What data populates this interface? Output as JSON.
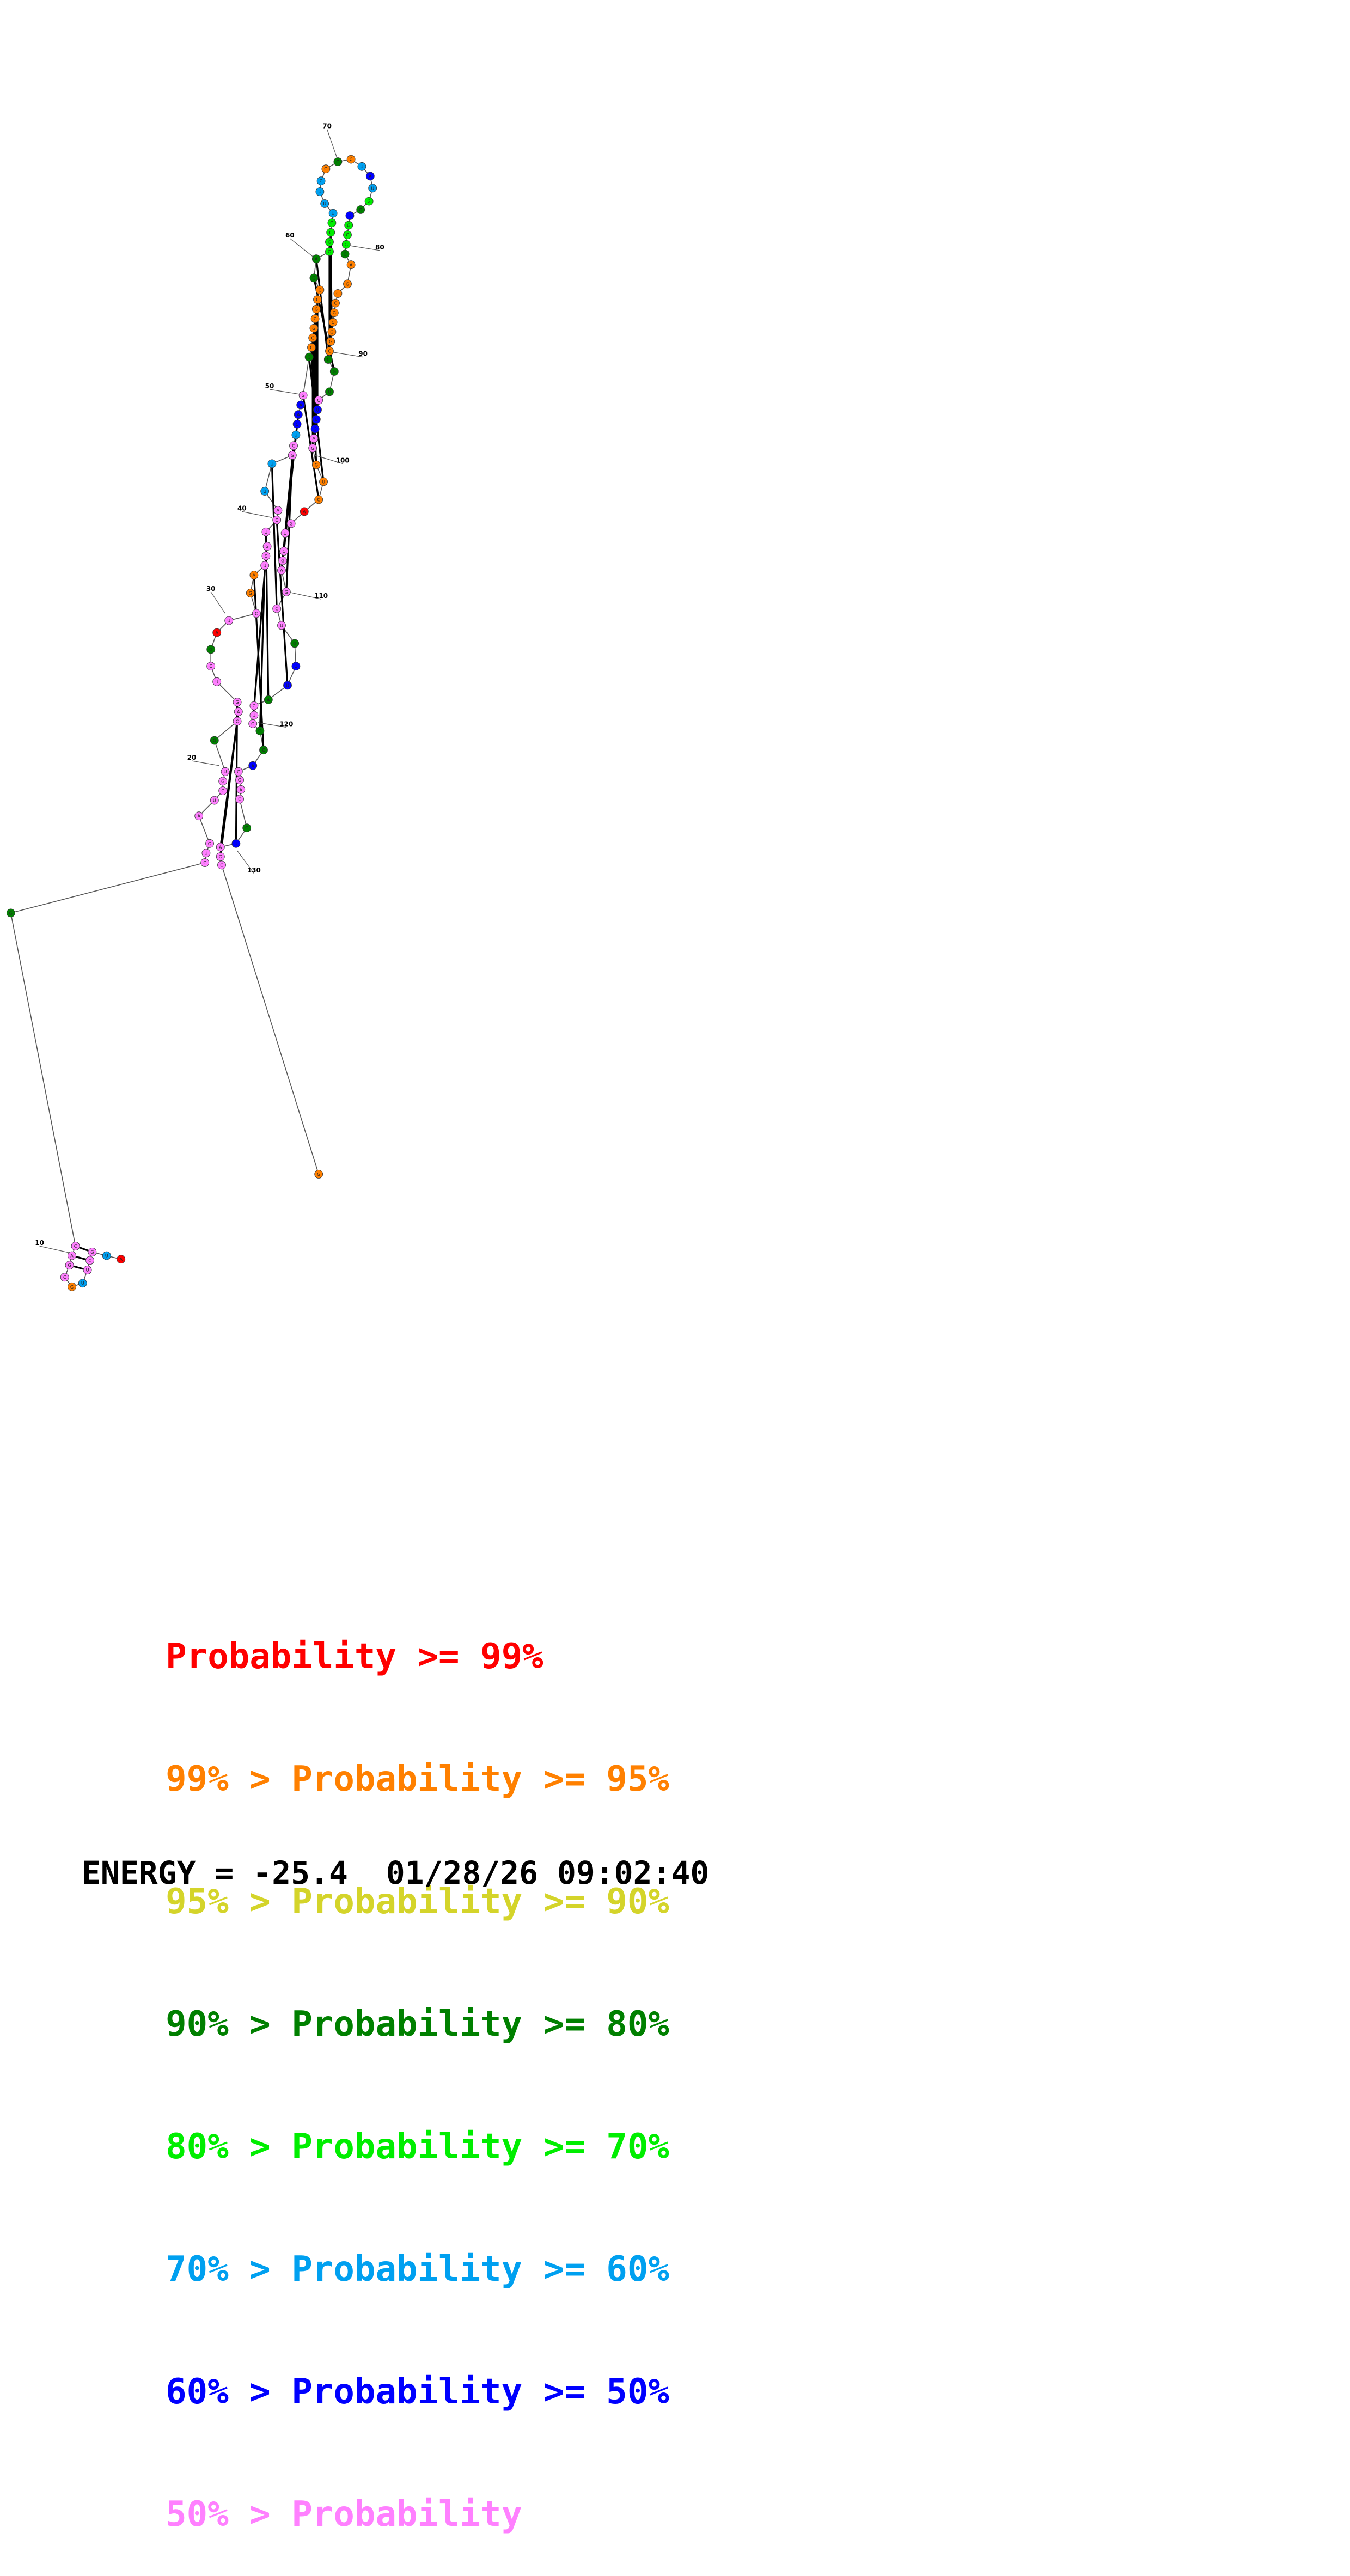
{
  "diagram": {
    "type": "rna-secondary-structure",
    "index_labels": [
      "10",
      "20",
      "30",
      "40",
      "50",
      "60",
      "70",
      "80",
      "90",
      "100",
      "110",
      "120",
      "130"
    ]
  },
  "legend": {
    "rows": [
      {
        "prefix": "",
        "label": "Probability",
        "suffix": " >= 99%",
        "color": "#ff0000"
      },
      {
        "prefix": "99% > ",
        "label": "Probability",
        "suffix": " >= 95%",
        "color": "#ff8000"
      },
      {
        "prefix": "95% > ",
        "label": "Probability",
        "suffix": " >= 90%",
        "color": "#d4d42a"
      },
      {
        "prefix": "90% > ",
        "label": "Probability",
        "suffix": " >= 80%",
        "color": "#008000"
      },
      {
        "prefix": "80% > ",
        "label": "Probability",
        "suffix": " >= 70%",
        "color": "#00ee00"
      },
      {
        "prefix": "70% > ",
        "label": "Probability",
        "suffix": " >= 60%",
        "color": "#00a0f0"
      },
      {
        "prefix": "60% > ",
        "label": "Probability",
        "suffix": " >= 50%",
        "color": "#0000ff"
      },
      {
        "prefix": "50% > ",
        "label": "Probability",
        "suffix": "",
        "color": "#ff80ff"
      }
    ]
  },
  "footer": {
    "energy_text": "ENERGY = -25.4",
    "timestamp": "01/28/26 09:02:40"
  },
  "colors": {
    "p99": "#ff0000",
    "p95": "#ff8000",
    "p90": "#d4d42a",
    "p80": "#008000",
    "p70": "#00ee00",
    "p60": "#00a0f0",
    "p50": "#0000ff",
    "plow": "#ff80ff",
    "backbone": "#555555",
    "bond": "#000000"
  }
}
